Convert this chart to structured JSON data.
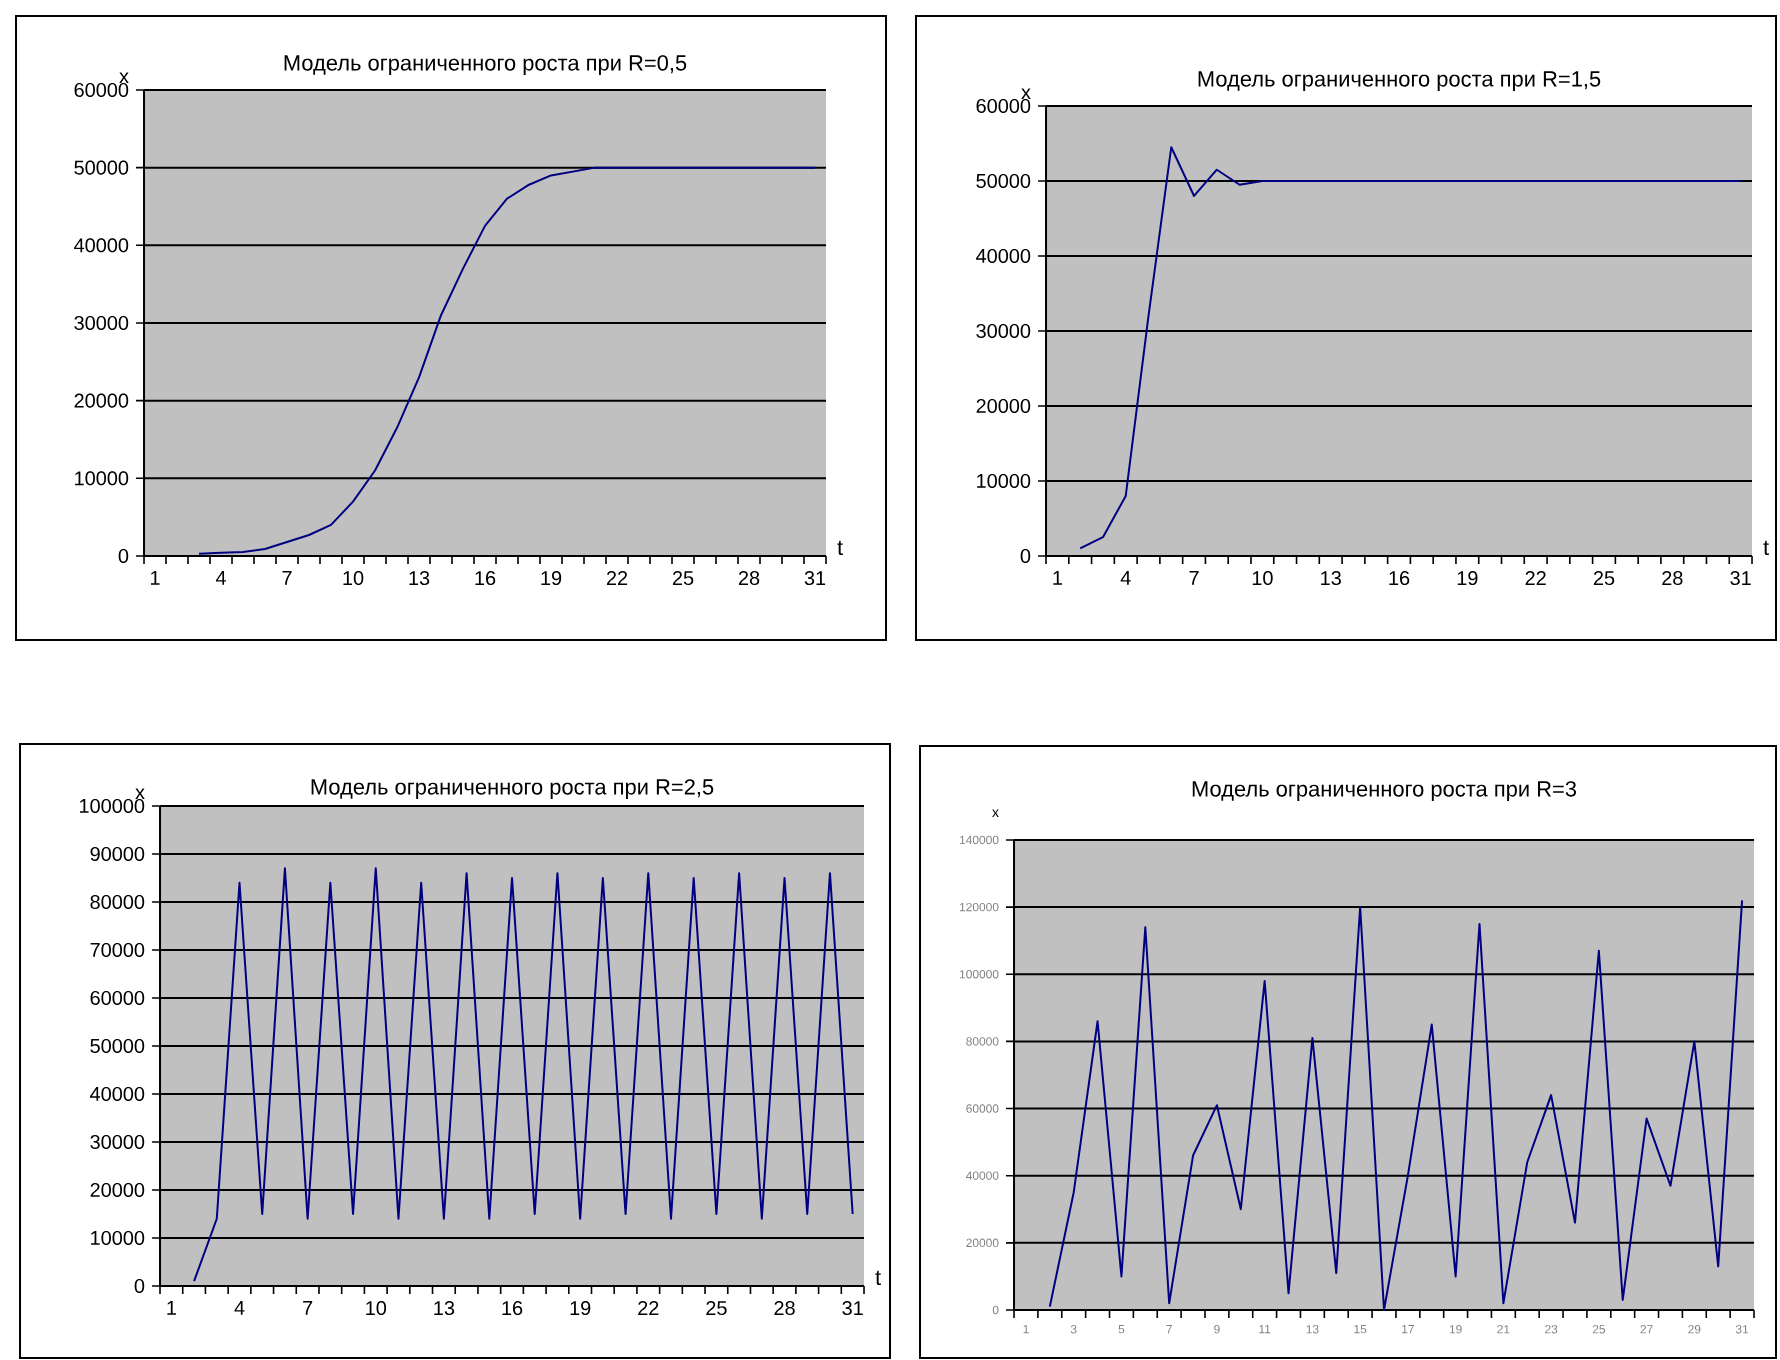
{
  "chart_data": [
    {
      "type": "line",
      "title": "Модель ограниченного роста при R=0,5",
      "xlabel": "t",
      "ylabel": "x",
      "color": "#000080",
      "grid": "y",
      "ylim": [
        0,
        60000
      ],
      "yticks": [
        0,
        10000,
        20000,
        30000,
        40000,
        50000,
        60000
      ],
      "categories": [
        "1",
        null,
        null,
        "4",
        null,
        null,
        "7",
        null,
        null,
        "10",
        null,
        null,
        "13",
        null,
        null,
        "16",
        null,
        null,
        "19",
        null,
        null,
        "22",
        null,
        null,
        "25",
        null,
        null,
        "28",
        null,
        null,
        "31"
      ],
      "values": [
        null,
        null,
        300,
        400,
        500,
        900,
        1800,
        2700,
        4000,
        7000,
        11000,
        16500,
        23000,
        31000,
        37000,
        42500,
        46000,
        47800,
        49000,
        49500,
        50000,
        50000,
        50000,
        50000,
        50000,
        50000,
        50000,
        50000,
        50000,
        50000,
        50000
      ]
    },
    {
      "type": "line",
      "title": "Модель ограниченного роста при R=1,5",
      "xlabel": "t",
      "ylabel": "x",
      "color": "#000080",
      "grid": "y",
      "ylim": [
        0,
        60000
      ],
      "yticks": [
        0,
        10000,
        20000,
        30000,
        40000,
        50000,
        60000
      ],
      "categories": [
        "1",
        null,
        null,
        "4",
        null,
        null,
        "7",
        null,
        null,
        "10",
        null,
        null,
        "13",
        null,
        null,
        "16",
        null,
        null,
        "19",
        null,
        null,
        "22",
        null,
        null,
        "25",
        null,
        null,
        "28",
        null,
        null,
        "31"
      ],
      "values": [
        null,
        1000,
        2500,
        8000,
        32000,
        54500,
        48000,
        51500,
        49500,
        50000,
        50000,
        50000,
        50000,
        50000,
        50000,
        50000,
        50000,
        50000,
        50000,
        50000,
        50000,
        50000,
        50000,
        50000,
        50000,
        50000,
        50000,
        50000,
        50000,
        50000,
        50000
      ]
    },
    {
      "type": "line",
      "title": "Модель ограниченного роста при R=2,5",
      "xlabel": "t",
      "ylabel": "x",
      "color": "#000080",
      "grid": "y",
      "ylim": [
        0,
        100000
      ],
      "yticks": [
        0,
        10000,
        20000,
        30000,
        40000,
        50000,
        60000,
        70000,
        80000,
        90000,
        100000
      ],
      "categories": [
        "1",
        null,
        null,
        "4",
        null,
        null,
        "7",
        null,
        null,
        "10",
        null,
        null,
        "13",
        null,
        null,
        "16",
        null,
        null,
        "19",
        null,
        null,
        "22",
        null,
        null,
        "25",
        null,
        null,
        "28",
        null,
        null,
        "31"
      ],
      "values": [
        null,
        1000,
        14000,
        84000,
        15000,
        87000,
        14000,
        84000,
        15000,
        87000,
        14000,
        84000,
        14000,
        86000,
        14000,
        85000,
        15000,
        86000,
        14000,
        85000,
        15000,
        86000,
        14000,
        85000,
        15000,
        86000,
        14000,
        85000,
        15000,
        86000,
        15000
      ]
    },
    {
      "type": "line",
      "title": "Модель ограниченного роста при R=3",
      "ylabel": "x",
      "color": "#000080",
      "grid": "y",
      "ylim": [
        0,
        140000
      ],
      "yticks": [
        0,
        20000,
        40000,
        60000,
        80000,
        100000,
        120000,
        140000
      ],
      "categories": [
        "1",
        null,
        "3",
        null,
        "5",
        null,
        "7",
        null,
        "9",
        null,
        "11",
        null,
        "13",
        null,
        "15",
        null,
        "17",
        null,
        "19",
        null,
        "21",
        null,
        "23",
        null,
        "25",
        null,
        "27",
        null,
        "29",
        null,
        "31"
      ],
      "values": [
        null,
        1000,
        35000,
        86000,
        10000,
        114000,
        2000,
        46000,
        61000,
        30000,
        98000,
        5000,
        81000,
        11000,
        120000,
        0,
        40000,
        85000,
        10000,
        115000,
        2000,
        44000,
        64000,
        26000,
        107000,
        3000,
        57000,
        37000,
        80000,
        13000,
        122000
      ]
    }
  ]
}
